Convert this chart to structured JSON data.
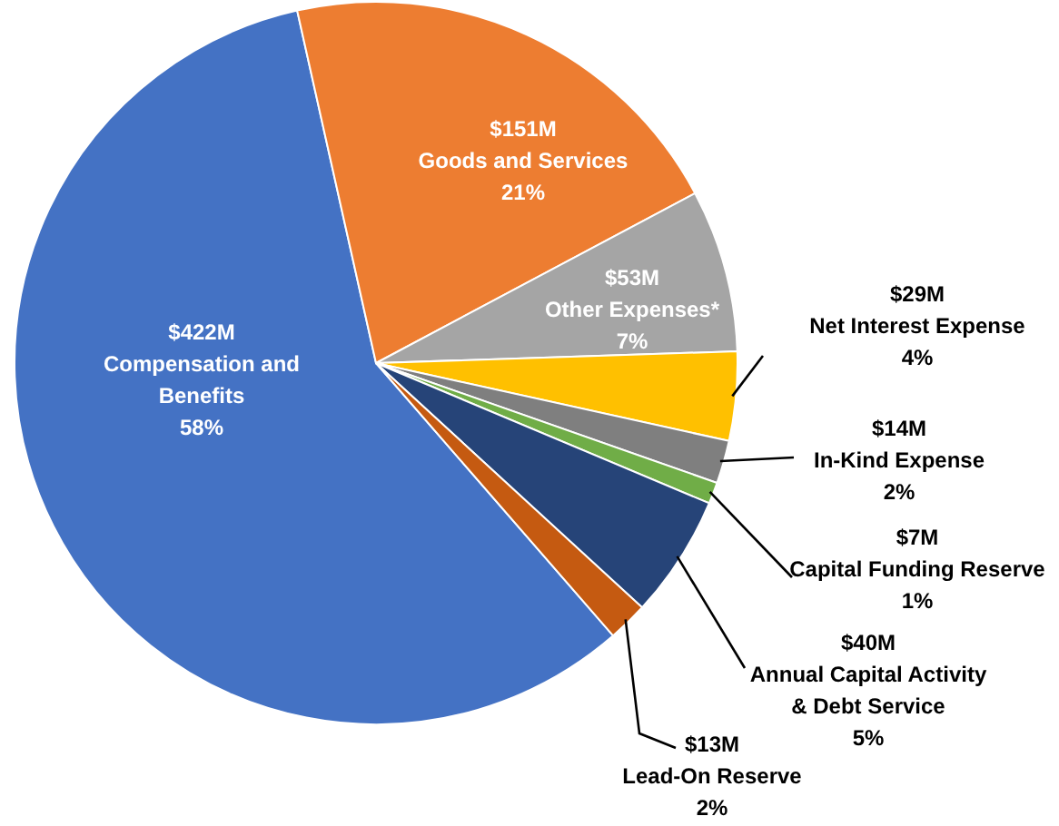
{
  "chart_data": {
    "type": "pie",
    "categories": [
      "Compensation and Benefits",
      "Goods and Services",
      "Other Expenses*",
      "Net Interest Expense",
      "In-Kind Expense",
      "Capital Funding Reserve",
      "Annual Capital Activity & Debt Service",
      "Lead-On Reserve"
    ],
    "values": [
      422,
      151,
      53,
      29,
      14,
      7,
      40,
      13
    ],
    "colors": [
      "#4472c4",
      "#ed7d31",
      "#a5a5a5",
      "#ffc000",
      "#7f7f7f",
      "#70ad47",
      "#264478",
      "#c55a11"
    ],
    "value_labels": [
      "$422M",
      "$151M",
      "$53M",
      "$29M",
      "$14M",
      "$7M",
      "$40M",
      "$13M"
    ],
    "annotations": [
      {
        "text": "58%",
        "x": "Compensation and Benefits"
      },
      {
        "text": "21%",
        "x": "Goods and Services"
      },
      {
        "text": "7%",
        "x": "Other Expenses*"
      },
      {
        "text": "4%",
        "x": "Net Interest Expense"
      },
      {
        "text": "2%",
        "x": "In-Kind Expense"
      },
      {
        "text": "1%",
        "x": "Capital Funding Reserve"
      },
      {
        "text": "5%",
        "x": "Annual Capital Activity & Debt Service"
      },
      {
        "text": "2%",
        "x": "Lead-On Reserve"
      }
    ]
  }
}
